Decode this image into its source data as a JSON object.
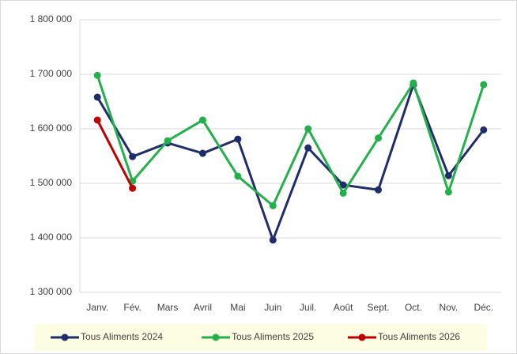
{
  "chart_data": {
    "type": "line",
    "categories": [
      "Janv.",
      "Fév.",
      "Mars",
      "Avril",
      "Mai",
      "Juin",
      "Juil.",
      "Août",
      "Sept.",
      "Oct.",
      "Nov.",
      "Déc."
    ],
    "series": [
      {
        "name": "Tous Aliments 2024",
        "color": "#1f2d6b",
        "values": [
          1658000,
          1549000,
          1574000,
          1555000,
          1581000,
          1396000,
          1565000,
          1497000,
          1488000,
          1681000,
          1514000,
          1598000
        ]
      },
      {
        "name": "Tous Aliments 2025",
        "color": "#22b04b",
        "values": [
          1698000,
          1504000,
          1578000,
          1616000,
          1513000,
          1459000,
          1600000,
          1482000,
          1583000,
          1684000,
          1484000,
          1681000
        ]
      },
      {
        "name": "Tous Aliments 2026",
        "color": "#c00000",
        "values": [
          1616000,
          1491000,
          null,
          null,
          null,
          null,
          null,
          null,
          null,
          null,
          null,
          null
        ]
      }
    ],
    "ylim": [
      1300000,
      1800000
    ],
    "yticks": [
      {
        "value": 1300000,
        "label": "1 300 000"
      },
      {
        "value": 1400000,
        "label": "1 400 000"
      },
      {
        "value": 1500000,
        "label": "1 500 000"
      },
      {
        "value": 1600000,
        "label": "1 600 000"
      },
      {
        "value": 1700000,
        "label": "1 700 000"
      },
      {
        "value": 1800000,
        "label": "1 800 000"
      }
    ],
    "grid": true,
    "legend": "bottom"
  }
}
